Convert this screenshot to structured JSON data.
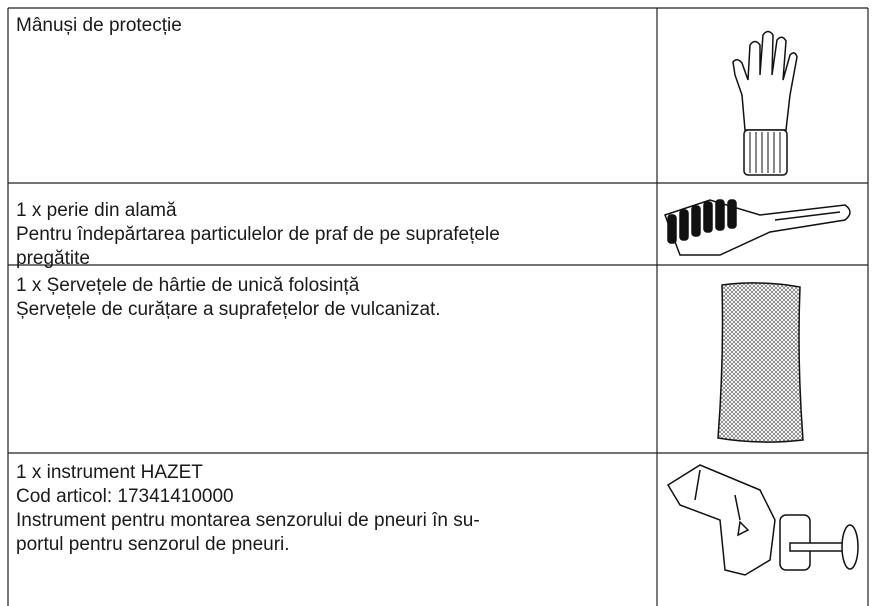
{
  "table": {
    "rows": [
      {
        "lines": [
          "Mânuși de protecție"
        ]
      },
      {
        "lines": [
          "1 x perie din alamă",
          "Pentru îndepărtarea particulelor de praf de pe suprafețele",
          "pregătite"
        ]
      },
      {
        "lines": [
          "1 x Șervețele de hârtie de unică folosință",
          "Șervețele de curățare a suprafețelor de vulcanizat."
        ]
      },
      {
        "lines": [
          "1 x instrument HAZET",
          "Cod articol: 17341410000",
          "Instrument pentru montarea senzorului de pneuri în su-",
          "portul pentru senzorul de pneuri."
        ]
      }
    ]
  }
}
